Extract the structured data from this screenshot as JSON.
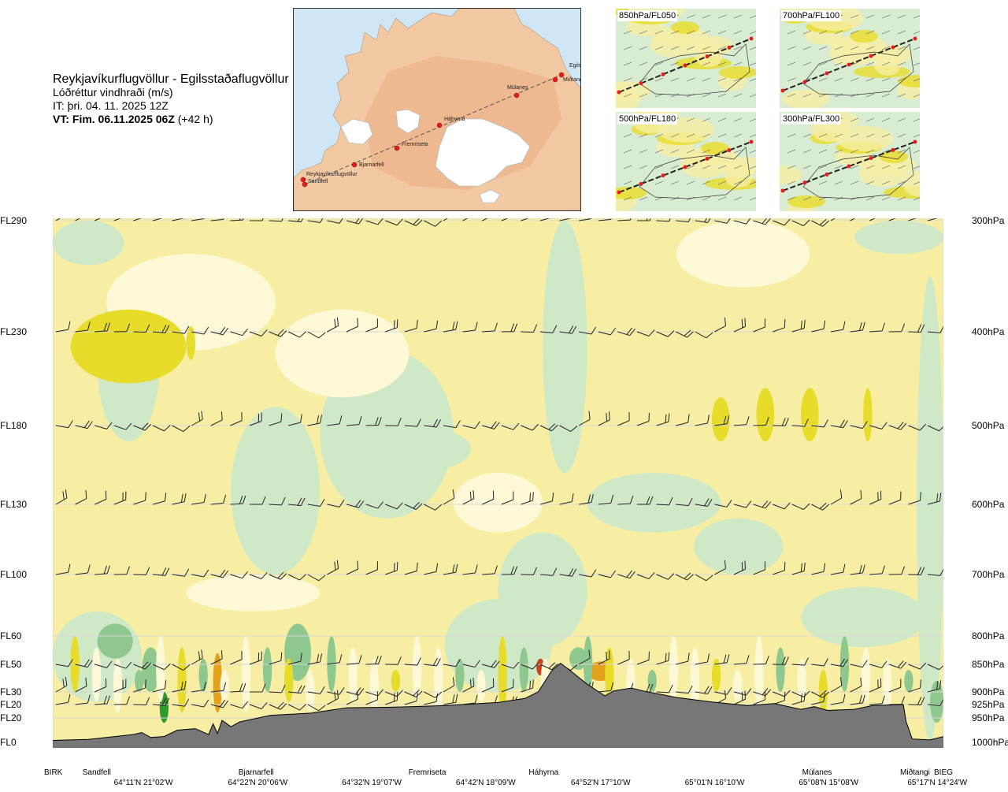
{
  "header": {
    "route": "Reykjavíkurflugvöllur - Egilsstaðaflugvöllur",
    "parameter": "Lóðréttur vindhraði (m/s)",
    "issue_time": "IT: þri. 04. 11. 2025 12Z",
    "valid_label": "VT: Fim. 06.11.2025 06Z",
    "valid_offset": "(+42 h)"
  },
  "map": {
    "waypoints": [
      "Reykjavíkurflugvöllur",
      "Sandfell",
      "Bjarnarfell",
      "Fremriseta",
      "Háhyrna",
      "Múlanes",
      "Miðtangi",
      "Egilsst"
    ]
  },
  "thumbnails": [
    {
      "label": "850hPa/FL050"
    },
    {
      "label": "700hPa/FL100"
    },
    {
      "label": "500hPa/FL180"
    },
    {
      "label": "300hPa/FL300"
    }
  ],
  "axes": {
    "left_levels": [
      {
        "label": "FL290",
        "hpa": 300
      },
      {
        "label": "FL230",
        "hpa": 400
      },
      {
        "label": "FL180",
        "hpa": 500
      },
      {
        "label": "FL130",
        "hpa": 600
      },
      {
        "label": "FL100",
        "hpa": 700
      },
      {
        "label": "FL60",
        "hpa": 800
      },
      {
        "label": "FL50",
        "hpa": 850
      },
      {
        "label": "FL30",
        "hpa": 900
      },
      {
        "label": "FL20",
        "hpa": 925
      },
      {
        "label": "FL20",
        "hpa": 950
      },
      {
        "label": "FL0",
        "hpa": 1000
      }
    ],
    "right_levels": [
      "300hPa",
      "400hPa",
      "500hPa",
      "600hPa",
      "700hPa",
      "800hPa",
      "850hPa",
      "900hPa",
      "925hPa",
      "950hPa",
      "1000hPa"
    ]
  },
  "bottom": {
    "locations": [
      {
        "name": "BIRK",
        "frac": -0.01
      },
      {
        "name": "Sandfell",
        "frac": 0.044
      },
      {
        "name": "Bjarnarfell",
        "frac": 0.219
      },
      {
        "name": "Fremriseta",
        "frac": 0.41
      },
      {
        "name": "Háhyrna",
        "frac": 0.545
      },
      {
        "name": "Múlanes",
        "frac": 0.852
      },
      {
        "name": "Miðtangi",
        "frac": 0.962
      },
      {
        "name": "BIEG",
        "frac": 1.0
      }
    ],
    "coords": [
      {
        "text": "64°11'N 21°02'W",
        "frac": 0.104
      },
      {
        "text": "64°22'N 20°06'W",
        "frac": 0.232
      },
      {
        "text": "64°32'N 19°07'W",
        "frac": 0.36
      },
      {
        "text": "64°42'N 18°09'W",
        "frac": 0.488
      },
      {
        "text": "64°52'N 17°10'W",
        "frac": 0.617
      },
      {
        "text": "65°01'N 16°10'W",
        "frac": 0.745
      },
      {
        "text": "65°08'N 15°08'W",
        "frac": 0.873
      },
      {
        "text": "65°17'N 14°24'W",
        "frac": 0.995
      }
    ]
  },
  "colors": {
    "strong_down": "#2e9b2e",
    "down": "#8fc88f",
    "weak_down": "#cfe9c7",
    "neutral_down": "#eaf6e6",
    "neutral_up": "#fdf9d6",
    "weak_up": "#f7eea3",
    "up": "#e8dc2a",
    "strong_up": "#e4a11b",
    "extreme_up": "#c8421d",
    "terrain": "#777777"
  },
  "chart_data": {
    "type": "heatmap",
    "title": "Lóðréttur vindhraði (m/s)",
    "xlabel": "",
    "ylabel": "",
    "y_levels_hpa": [
      300,
      400,
      500,
      600,
      700,
      800,
      850,
      900,
      925,
      950,
      1000
    ],
    "terrain_profile_hpa": [
      [
        0.0,
        996
      ],
      [
        0.04,
        994
      ],
      [
        0.09,
        984
      ],
      [
        0.1,
        980
      ],
      [
        0.11,
        990
      ],
      [
        0.125,
        988
      ],
      [
        0.14,
        975
      ],
      [
        0.16,
        972
      ],
      [
        0.175,
        984
      ],
      [
        0.18,
        962
      ],
      [
        0.185,
        982
      ],
      [
        0.19,
        955
      ],
      [
        0.2,
        968
      ],
      [
        0.21,
        958
      ],
      [
        0.245,
        945
      ],
      [
        0.29,
        941
      ],
      [
        0.33,
        931
      ],
      [
        0.38,
        930
      ],
      [
        0.44,
        927
      ],
      [
        0.5,
        921
      ],
      [
        0.53,
        913
      ],
      [
        0.545,
        900
      ],
      [
        0.56,
        862
      ],
      [
        0.57,
        848
      ],
      [
        0.58,
        860
      ],
      [
        0.6,
        886
      ],
      [
        0.62,
        908
      ],
      [
        0.63,
        898
      ],
      [
        0.65,
        893
      ],
      [
        0.665,
        899
      ],
      [
        0.7,
        911
      ],
      [
        0.74,
        920
      ],
      [
        0.78,
        927
      ],
      [
        0.81,
        923
      ],
      [
        0.84,
        934
      ],
      [
        0.855,
        929
      ],
      [
        0.87,
        936
      ],
      [
        0.9,
        934
      ],
      [
        0.92,
        927
      ],
      [
        0.955,
        925
      ],
      [
        0.958,
        957
      ],
      [
        0.965,
        993
      ],
      [
        0.985,
        995
      ],
      [
        1.0,
        988
      ]
    ],
    "fields": [
      {
        "class": "up",
        "at": [
          0.02,
          0.15,
          450,
          420,
          380,
          455
        ]
      },
      {
        "class": "up",
        "at": [
          0.15,
          0.16,
          430,
          410,
          395,
          430
        ]
      },
      {
        "class": "up",
        "at": [
          0.74,
          0.76,
          480,
          470,
          505,
          520
        ]
      },
      {
        "class": "up",
        "at": [
          0.79,
          0.81,
          470,
          460,
          510,
          520
        ]
      },
      {
        "class": "up",
        "at": [
          0.84,
          0.86,
          470,
          460,
          505,
          520
        ]
      },
      {
        "class": "up",
        "at": [
          0.91,
          0.92,
          470,
          460,
          505,
          520
        ]
      },
      {
        "class": "strong_down",
        "at": [
          0.12,
          0.13,
          900,
          930,
          960,
          930
        ]
      },
      {
        "class": "strong_up",
        "at": [
          0.18,
          0.19,
          860,
          830,
          900,
          940
        ]
      },
      {
        "class": "extreme_up",
        "at": [
          0.543,
          0.552,
          850,
          840,
          860,
          870
        ]
      },
      {
        "class": "strong_up",
        "at": [
          0.6,
          0.63,
          860,
          845,
          880,
          880
        ]
      }
    ],
    "wind_barb_levels_hpa": [
      300,
      400,
      500,
      600,
      700,
      850,
      900,
      925
    ],
    "legend": "none",
    "grid": false
  }
}
